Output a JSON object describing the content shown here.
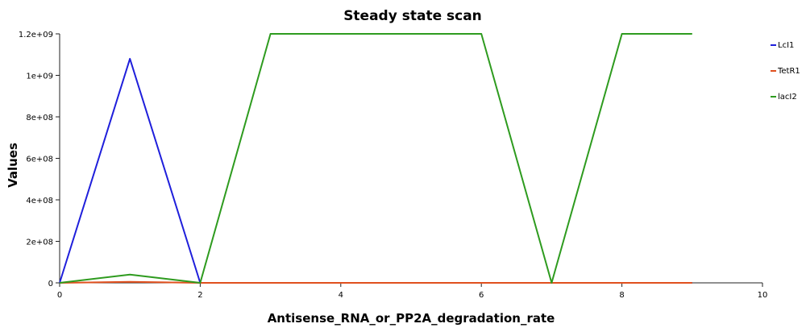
{
  "chart_data": {
    "type": "line",
    "title": "Steady state scan",
    "xlabel": "Antisense_RNA_or_PP2A_degradation_rate",
    "ylabel": "Values",
    "xlim": [
      0,
      10
    ],
    "ylim": [
      0,
      1200000000
    ],
    "xticks": [
      0,
      2,
      4,
      6,
      8,
      10
    ],
    "xtick_labels": [
      "0",
      "2",
      "4",
      "6",
      "8",
      "10"
    ],
    "yticks": [
      0,
      200000000,
      400000000,
      600000000,
      800000000,
      1000000000,
      1200000000
    ],
    "ytick_labels": [
      "0",
      "2e+08",
      "4e+08",
      "6e+08",
      "8e+08",
      "1e+09",
      "1.2e+09"
    ],
    "grid": false,
    "legend_position": "right",
    "series": [
      {
        "name": "LcI1",
        "color": "#1f1fdb",
        "x": [
          0,
          1,
          2,
          3,
          4,
          5,
          6,
          7,
          8,
          9
        ],
        "y": [
          0,
          1080000000,
          0,
          0,
          0,
          0,
          0,
          0,
          0,
          0
        ]
      },
      {
        "name": "TetR1",
        "color": "#e0501e",
        "x": [
          0,
          1,
          2,
          3,
          4,
          5,
          6,
          7,
          8,
          9
        ],
        "y": [
          0,
          5000000,
          0,
          0,
          0,
          0,
          0,
          0,
          0,
          0
        ]
      },
      {
        "name": "lacI2",
        "color": "#2e9b1f",
        "x": [
          0,
          1,
          2,
          3,
          4,
          5,
          6,
          7,
          8,
          9
        ],
        "y": [
          0,
          40000000,
          0,
          1200000000,
          1200000000,
          1200000000,
          1200000000,
          0,
          1200000000,
          1200000000
        ]
      }
    ]
  }
}
